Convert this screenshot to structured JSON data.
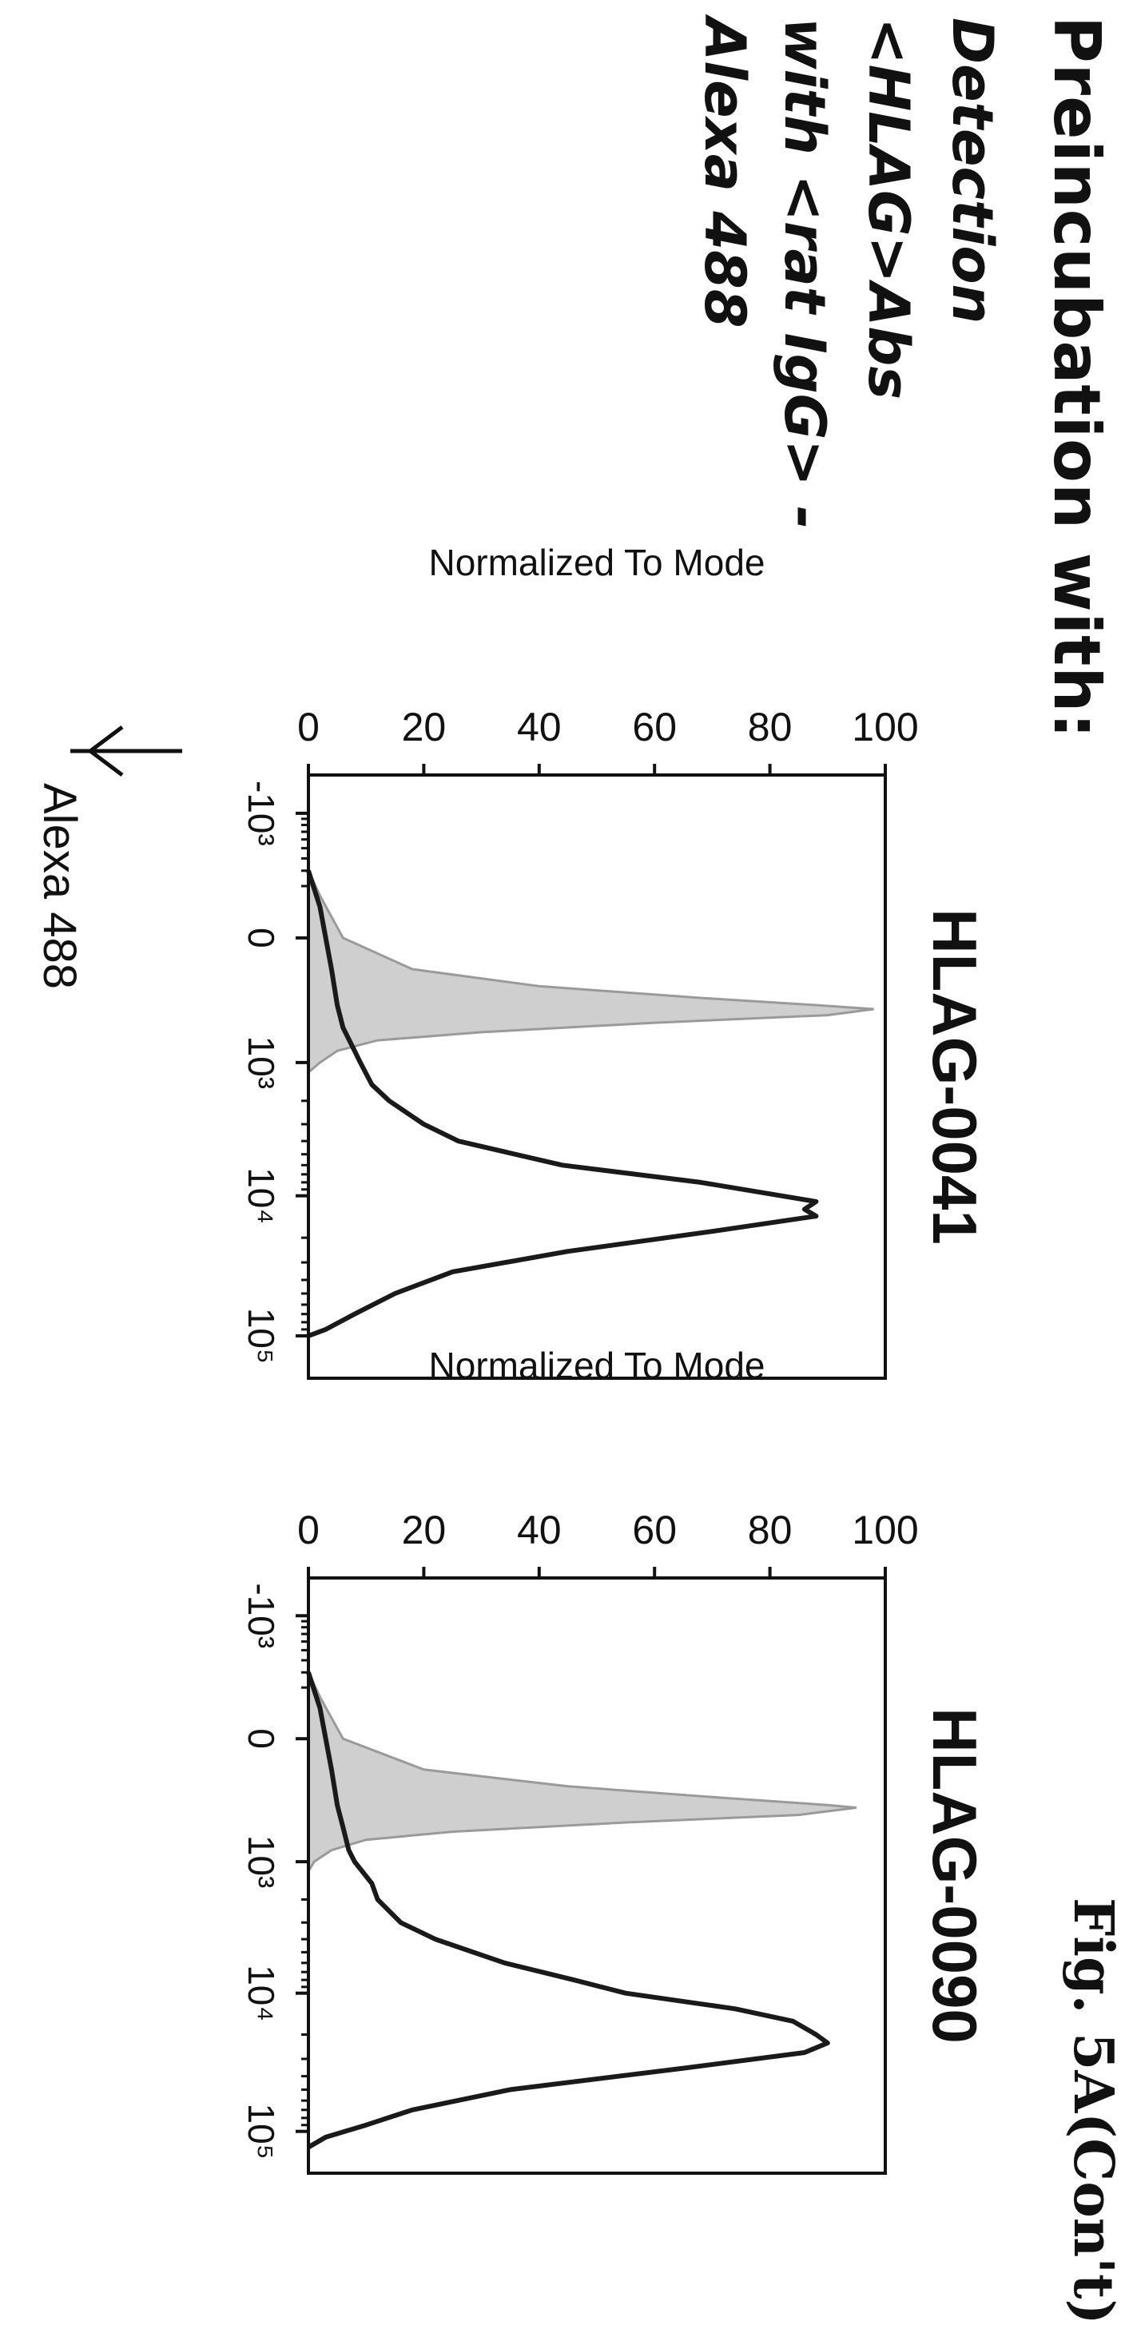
{
  "figure_caption": "Fig. 5A(Con't)",
  "left_panel": {
    "heading": "Preincubation with:",
    "detection_lines": [
      "Detection",
      "<HLAG>Abs",
      "with <rat IgG> -",
      "Alexa 488"
    ]
  },
  "x_axis_label": "Alexa 488",
  "colors": {
    "ink": "#1a1a1a",
    "control_fill": "#cfcfcf",
    "control_line": "#9a9a9a",
    "frame": "#111111"
  },
  "chart_data": [
    {
      "type": "area",
      "title": "HLAG-0041",
      "ylabel": "Normalized To Mode",
      "xlabel": "Alexa 488",
      "x_scale": "biexponential",
      "xlim": [
        -2000,
        200000
      ],
      "ylim": [
        0,
        100
      ],
      "x_ticks": [
        -1000,
        0,
        1000,
        10000,
        100000
      ],
      "x_tick_labels": [
        "-10³",
        "0",
        "10³",
        "10⁴",
        "10⁵"
      ],
      "y_ticks": [
        0,
        20,
        40,
        60,
        80,
        100
      ],
      "y_tick_labels": [
        "0",
        "20",
        "40",
        "60",
        "80",
        "100"
      ],
      "series": [
        {
          "role": "control",
          "filled": true,
          "points": [
            [
              -300,
              0
            ],
            [
              -150,
              2
            ],
            [
              0,
              6
            ],
            [
              100,
              18
            ],
            [
              180,
              40
            ],
            [
              250,
              68
            ],
            [
              300,
              88
            ],
            [
              330,
              98
            ],
            [
              380,
              90
            ],
            [
              450,
              60
            ],
            [
              550,
              30
            ],
            [
              650,
              12
            ],
            [
              800,
              5
            ],
            [
              1000,
              2
            ],
            [
              1200,
              0
            ]
          ]
        },
        {
          "role": "sample",
          "filled": false,
          "points": [
            [
              -300,
              0
            ],
            [
              -100,
              2
            ],
            [
              100,
              4
            ],
            [
              300,
              5
            ],
            [
              500,
              6
            ],
            [
              800,
              8
            ],
            [
              1000,
              9
            ],
            [
              1500,
              11
            ],
            [
              2000,
              14
            ],
            [
              3000,
              20
            ],
            [
              4000,
              26
            ],
            [
              6000,
              44
            ],
            [
              8000,
              68
            ],
            [
              10000,
              82
            ],
            [
              11000,
              88
            ],
            [
              12500,
              86
            ],
            [
              14000,
              88
            ],
            [
              18000,
              70
            ],
            [
              25000,
              45
            ],
            [
              35000,
              25
            ],
            [
              50000,
              15
            ],
            [
              70000,
              8
            ],
            [
              90000,
              3
            ],
            [
              100000,
              0
            ]
          ]
        }
      ]
    },
    {
      "type": "area",
      "title": "HLAG-0090",
      "ylabel": "Normalized To Mode",
      "xlabel": "Alexa 488",
      "x_scale": "biexponential",
      "xlim": [
        -2000,
        200000
      ],
      "ylim": [
        0,
        100
      ],
      "x_ticks": [
        -1000,
        0,
        1000,
        10000,
        100000
      ],
      "x_tick_labels": [
        "-10³",
        "0",
        "10³",
        "10⁴",
        "10⁵"
      ],
      "y_ticks": [
        0,
        20,
        40,
        60,
        80,
        100
      ],
      "y_tick_labels": [
        "0",
        "20",
        "40",
        "60",
        "80",
        "100"
      ],
      "series": [
        {
          "role": "control",
          "filled": true,
          "points": [
            [
              -300,
              0
            ],
            [
              -150,
              2
            ],
            [
              0,
              6
            ],
            [
              100,
              20
            ],
            [
              180,
              45
            ],
            [
              250,
              72
            ],
            [
              300,
              90
            ],
            [
              320,
              95
            ],
            [
              380,
              85
            ],
            [
              450,
              55
            ],
            [
              550,
              25
            ],
            [
              650,
              10
            ],
            [
              800,
              4
            ],
            [
              1000,
              1
            ],
            [
              1200,
              0
            ]
          ]
        },
        {
          "role": "sample",
          "filled": false,
          "points": [
            [
              -300,
              0
            ],
            [
              -100,
              2
            ],
            [
              100,
              4
            ],
            [
              300,
              5
            ],
            [
              500,
              6
            ],
            [
              800,
              7
            ],
            [
              1000,
              8
            ],
            [
              1500,
              11
            ],
            [
              2000,
              12
            ],
            [
              3000,
              16
            ],
            [
              4000,
              22
            ],
            [
              6000,
              34
            ],
            [
              8000,
              46
            ],
            [
              10000,
              55
            ],
            [
              13000,
              74
            ],
            [
              16000,
              84
            ],
            [
              20000,
              88
            ],
            [
              23000,
              90
            ],
            [
              27000,
              86
            ],
            [
              35000,
              65
            ],
            [
              50000,
              35
            ],
            [
              70000,
              18
            ],
            [
              90000,
              10
            ],
            [
              110000,
              3
            ],
            [
              130000,
              0
            ]
          ]
        }
      ]
    }
  ]
}
